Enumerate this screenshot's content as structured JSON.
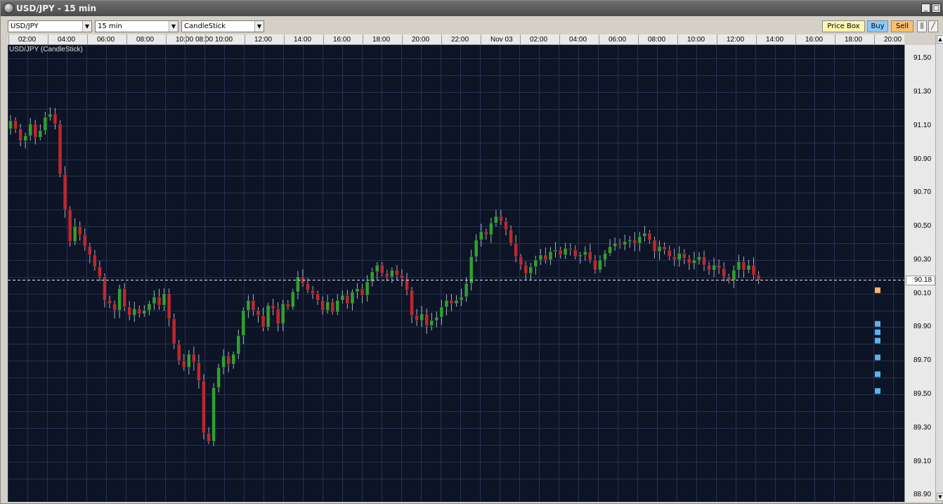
{
  "window": {
    "title": "USD/JPY - 15 min",
    "controls": [
      "_",
      "□",
      "×"
    ]
  },
  "toolbar": {
    "symbol": "USD/JPY",
    "interval": "15 min",
    "chart_type": "CandleStick",
    "price_box_label": "Price Box",
    "buy_label": "Buy",
    "sell_label": "Sell"
  },
  "series_label": "USD/JPY (CandleStick)",
  "time_labels": [
    "02:00",
    "04:00",
    "06:00",
    "08:00",
    "10:00",
    "08:00",
    "10:00",
    "12:00",
    "14:00",
    "16:00",
    "18:00",
    "20:00",
    "22:00",
    "Nov 03",
    "02:00",
    "04:00",
    "06:00",
    "08:00",
    "10:00",
    "12:00",
    "14:00",
    "16:00",
    "18:00",
    "20:00"
  ],
  "current_price": "90.18",
  "colors": {
    "up": "#2fa12f",
    "down": "#c0272d",
    "background": "#0c1426",
    "grid": "#243352",
    "current_line": "#dfe6ff",
    "ask_marker": "#f7b46a",
    "bid_marker": "#58b4f0"
  },
  "chart_data": {
    "type": "candlestick",
    "title": "USD/JPY (CandleStick)",
    "ylim": [
      88.86,
      91.58
    ],
    "yticks": [
      "91.50",
      "91.30",
      "91.10",
      "90.90",
      "90.70",
      "90.50",
      "90.30",
      "90.10",
      "89.90",
      "89.70",
      "89.50",
      "89.30",
      "89.10",
      "88.90"
    ],
    "current_price": 90.18,
    "order_markers": {
      "ask": [
        90.12
      ],
      "bid": [
        89.92,
        89.87,
        89.82,
        89.72,
        89.62,
        89.52
      ]
    },
    "closes": [
      91.13,
      91.08,
      91.01,
      91.04,
      91.11,
      91.03,
      91.07,
      91.15,
      91.17,
      91.11,
      90.81,
      90.6,
      90.41,
      90.5,
      90.45,
      90.38,
      90.33,
      90.26,
      90.2,
      90.06,
      90.04,
      90.0,
      90.13,
      90.02,
      89.97,
      90.01,
      89.98,
      90.0,
      90.04,
      90.08,
      90.03,
      90.1,
      89.95,
      89.8,
      89.7,
      89.66,
      89.74,
      89.69,
      89.58,
      89.27,
      89.22,
      89.54,
      89.66,
      89.73,
      89.68,
      89.74,
      89.85,
      90.0,
      90.06,
      90.0,
      89.97,
      89.9,
      90.03,
      90.01,
      89.92,
      90.04,
      90.02,
      90.11,
      90.2,
      90.16,
      90.12,
      90.1,
      90.06,
      90.0,
      90.05,
      89.99,
      90.06,
      90.09,
      90.04,
      90.11,
      90.13,
      90.09,
      90.17,
      90.23,
      90.27,
      90.22,
      90.2,
      90.24,
      90.21,
      90.19,
      90.12,
      89.97,
      89.94,
      89.98,
      89.91,
      89.94,
      89.96,
      90.02,
      90.06,
      90.04,
      90.06,
      90.08,
      90.16,
      90.32,
      90.42,
      90.47,
      90.45,
      90.52,
      90.56,
      90.53,
      90.48,
      90.4,
      90.32,
      90.27,
      90.22,
      90.26,
      90.3,
      90.33,
      90.3,
      90.35,
      90.36,
      90.33,
      90.37,
      90.36,
      90.32,
      90.33,
      90.35,
      90.3,
      90.24,
      90.3,
      90.34,
      90.38,
      90.4,
      90.39,
      90.41,
      90.42,
      90.4,
      90.44,
      90.46,
      90.42,
      90.35,
      90.38,
      90.36,
      90.32,
      90.3,
      90.34,
      90.31,
      90.28,
      90.3,
      90.32,
      90.27,
      90.24,
      90.27,
      90.25,
      90.2,
      90.18,
      90.24,
      90.29,
      90.24,
      90.27,
      90.21,
      90.18
    ]
  }
}
